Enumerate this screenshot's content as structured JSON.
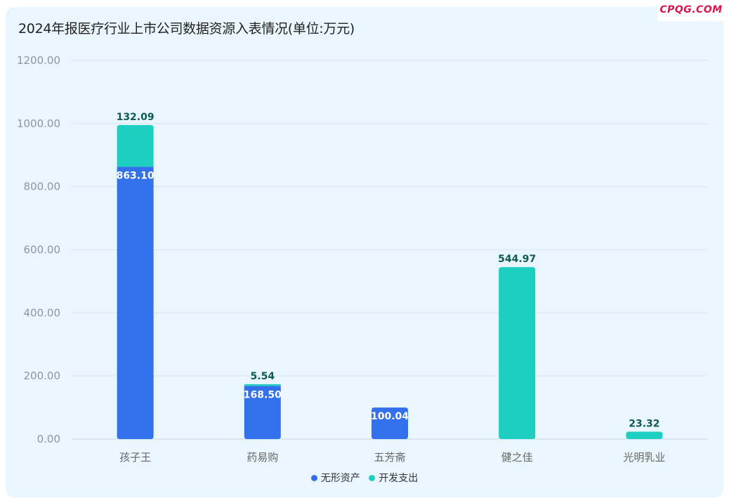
{
  "brand": "CPQG.COM",
  "colors": {
    "series_intangible": "#3370eb",
    "series_dev": "#1ccfc1",
    "label_dark": "#0d5b52",
    "label_light": "#ffffff",
    "grid": "#d6e4ee",
    "axis_text": "#8a96a3",
    "category_text": "#666666"
  },
  "chart_data": {
    "type": "bar",
    "stacked": true,
    "title": "2024年报医疗行业上市公司数据资源入表情况(单位:万元)",
    "categories": [
      "孩子王",
      "药易购",
      "五芳斋",
      "健之佳",
      "光明乳业"
    ],
    "series": [
      {
        "name": "无形资产",
        "values": [
          863.1,
          168.5,
          100.04,
          null,
          null
        ]
      },
      {
        "name": "开发支出",
        "values": [
          132.09,
          5.54,
          null,
          544.97,
          23.32
        ]
      }
    ],
    "ylim": [
      0,
      1200
    ],
    "yticks": [
      "0.00",
      "200.00",
      "400.00",
      "600.00",
      "800.00",
      "1000.00",
      "1200.00"
    ],
    "data_labels": [
      [
        "863.10",
        "168.50",
        "100.04",
        "",
        ""
      ],
      [
        "132.09",
        "5.54",
        "",
        "544.97",
        "23.32"
      ]
    ],
    "grid": true,
    "legend_position": "bottom-center"
  }
}
